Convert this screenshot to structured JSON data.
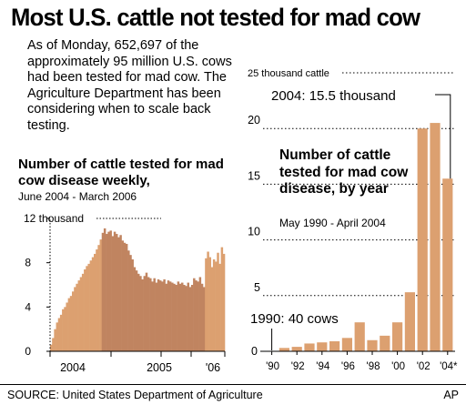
{
  "title": "Most U.S. cattle not tested for mad cow",
  "intro": "As of Monday, 652,697 of the approximately 95 million U.S. cows had been tested for mad cow. The Agriculture Department has been considering when to scale back testing.",
  "source": "SOURCE: United States Department of Agriculture",
  "credit": "AP",
  "colors": {
    "bar_light": "#dca070",
    "bar_dark": "#c08460",
    "axis": "#000000"
  },
  "chart_data": [
    {
      "type": "bar",
      "title": "Number of cattle tested for mad cow disease weekly,",
      "subtitle": "June 2004 - March 2006",
      "xlabel": "",
      "ylabel": "",
      "ylim": [
        0,
        12
      ],
      "yticks": [
        {
          "value": 0,
          "label": "0"
        },
        {
          "value": 4,
          "label": "4"
        },
        {
          "value": 8,
          "label": "8"
        },
        {
          "value": 12,
          "label": "12 thousand"
        }
      ],
      "xtick_labels": [
        "2004",
        "2005",
        "'06"
      ],
      "grid": false,
      "values": [
        0.6,
        1.2,
        2.0,
        2.6,
        3.0,
        3.3,
        3.8,
        4.0,
        4.4,
        4.8,
        5.0,
        5.4,
        5.8,
        6.1,
        6.4,
        6.7,
        7.0,
        7.4,
        7.7,
        7.9,
        8.2,
        8.5,
        8.8,
        9.2,
        9.6,
        10.1,
        10.7,
        11.1,
        10.6,
        10.8,
        10.9,
        10.4,
        10.8,
        10.6,
        10.3,
        10.5,
        10.0,
        9.8,
        9.7,
        9.1,
        8.7,
        8.3,
        7.6,
        7.3,
        7.0,
        6.8,
        6.5,
        6.8,
        7.1,
        6.7,
        6.6,
        6.3,
        6.6,
        6.2,
        6.5,
        6.4,
        6.3,
        6.5,
        6.1,
        6.4,
        6.3,
        6.2,
        6.1,
        6.0,
        6.3,
        6.1,
        6.2,
        6.0,
        5.9,
        6.2,
        5.8,
        6.0,
        6.6,
        6.4,
        6.3,
        6.7,
        6.1,
        5.8,
        8.4,
        9.0,
        8.5,
        7.6,
        8.3,
        8.1,
        8.9,
        7.9,
        9.4,
        8.8
      ]
    },
    {
      "type": "bar",
      "title": "Number of cattle tested for mad cow disease, by year",
      "subtitle": "May 1990 - April 2004",
      "xlabel": "",
      "ylabel": "",
      "ylim": [
        0,
        25
      ],
      "yticks": [
        {
          "value": 0,
          "label": "0"
        },
        {
          "value": 5,
          "label": "5"
        },
        {
          "value": 10,
          "label": "10"
        },
        {
          "value": 15,
          "label": "15"
        },
        {
          "value": 20,
          "label": "20"
        },
        {
          "value": 25,
          "label": "25 thousand cattle"
        }
      ],
      "categories": [
        "'90",
        "'91",
        "'92",
        "'93",
        "'94",
        "'95",
        "'96",
        "'97",
        "'98",
        "'99",
        "'00",
        "'01",
        "'02",
        "'03",
        "'04*"
      ],
      "xtick_labels": [
        "'90",
        "'92",
        "'94",
        "'96",
        "'98",
        "'00",
        "'02",
        "'04*"
      ],
      "values": [
        0.04,
        0.3,
        0.4,
        0.7,
        0.8,
        0.9,
        1.2,
        2.6,
        1.0,
        1.4,
        2.6,
        5.3,
        20.0,
        20.5,
        15.5
      ],
      "grid": true,
      "annotations": [
        "2004: 15.5 thousand",
        "1990: 40 cows"
      ]
    }
  ]
}
